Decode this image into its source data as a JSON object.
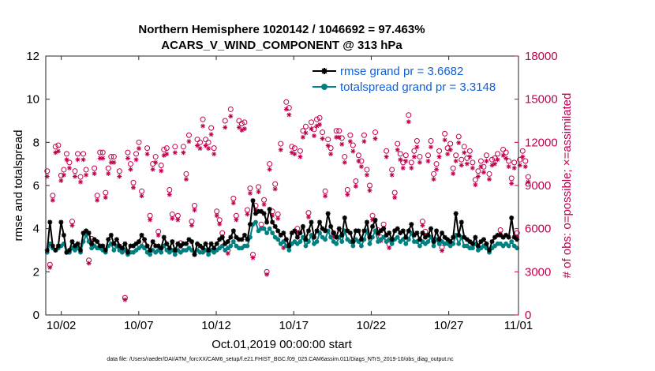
{
  "chart_data": {
    "type": "line",
    "title_line1": "Northern Hemisphere 1020142 / 1046692 = 97.463%",
    "title_line2": "ACARS_V_WIND_COMPONENT @ 313 hPa",
    "xlabel": "Oct.01,2019 00:00:00 start",
    "ylabel": "rmse and totalspread",
    "ylabel_right": "# of obs: o=possible; ×=assimilated",
    "footnote": "data file: /Users/raeder/DAI/ATM_forcXX/CAM6_setup/f.e21.FHIST_BGC.f09_025.CAM6assim.011/Diags_NTrS_2019-10/obs_diag_output.nc",
    "xlim": [
      0.5,
      31.0
    ],
    "ylim": [
      0,
      12
    ],
    "ylim_right": [
      0,
      18000
    ],
    "x_ticks": [
      1.5,
      6.5,
      11.5,
      16.5,
      21.5,
      26.5,
      31.0
    ],
    "x_tick_labels": [
      "10/02",
      "10/07",
      "10/12",
      "10/17",
      "10/22",
      "10/27",
      "11/01"
    ],
    "y_ticks": [
      0,
      2,
      4,
      6,
      8,
      10,
      12
    ],
    "y_tick_labels": [
      "0",
      "2",
      "4",
      "6",
      "8",
      "10",
      "12"
    ],
    "y_right_ticks": [
      0,
      3000,
      6000,
      9000,
      12000,
      15000,
      18000
    ],
    "y_right_tick_labels": [
      "0",
      "3000",
      "6000",
      "9000",
      "12000",
      "15000",
      "18000"
    ],
    "series": [
      {
        "name": "rmse",
        "legend": "rmse grand pr = 3.6682",
        "color": "#000000",
        "values": [
          3.0,
          4.3,
          3.2,
          3.0,
          3.2,
          4.3,
          3.7,
          2.9,
          3.0,
          3.4,
          3.2,
          3.3,
          3.0,
          3.8,
          3.9,
          3.8,
          3.3,
          3.5,
          3.4,
          3.2,
          3.2,
          3.0,
          3.5,
          3.7,
          3.3,
          3.5,
          3.2,
          3.1,
          3.3,
          2.9,
          3.2,
          3.2,
          3.3,
          3.4,
          3.7,
          3.5,
          3.2,
          3.0,
          3.4,
          3.2,
          3.2,
          3.1,
          3.6,
          3.3,
          3.1,
          3.4,
          3.0,
          3.3,
          3.2,
          3.3,
          3.3,
          3.5,
          3.4,
          2.8,
          3.3,
          3.2,
          3.1,
          3.3,
          3.0,
          3.3,
          3.1,
          3.3,
          3.5,
          3.6,
          3.3,
          3.4,
          3.6,
          3.9,
          3.6,
          3.5,
          3.5,
          3.7,
          3.5,
          4.2,
          5.3,
          4.7,
          4.8,
          4.8,
          4.7,
          4.3,
          4.9,
          4.3,
          4.1,
          3.9,
          3.7,
          3.8,
          3.5,
          3.2,
          3.8,
          3.9,
          3.6,
          3.8,
          4.1,
          3.5,
          3.9,
          4.3,
          3.6,
          3.9,
          4.3,
          4.0,
          3.9,
          4.7,
          4.1,
          3.8,
          3.6,
          4.0,
          3.7,
          4.5,
          3.9,
          3.8,
          3.4,
          3.9,
          3.9,
          3.5,
          3.9,
          4.3,
          3.6,
          4.1,
          4.4,
          3.8,
          3.9,
          4.0,
          3.7,
          3.8,
          3.5,
          3.9,
          4.0,
          3.8,
          3.9,
          3.6,
          3.9,
          4.2,
          3.7,
          3.8,
          3.5,
          3.8,
          3.6,
          3.7,
          4.0,
          3.4,
          3.9,
          3.5,
          3.8,
          3.6,
          3.5,
          3.4,
          3.6,
          4.7,
          3.7,
          4.3,
          3.6,
          3.5,
          3.4,
          3.3,
          3.6,
          3.2,
          3.4,
          3.5,
          3.3,
          3.0,
          3.4,
          3.6,
          3.7,
          3.7,
          3.6,
          3.7,
          3.6,
          4.5,
          3.6,
          3.5
        ]
      },
      {
        "name": "totalspread",
        "legend": "totalspread grand pr = 3.3148",
        "color": "#008080",
        "values": [
          2.9,
          3.3,
          3.1,
          3.0,
          3.1,
          3.2,
          3.3,
          2.9,
          2.9,
          3.1,
          3.0,
          3.1,
          2.9,
          3.4,
          3.7,
          3.4,
          3.1,
          3.2,
          3.1,
          3.1,
          3.0,
          2.9,
          3.2,
          3.3,
          3.0,
          3.2,
          3.0,
          2.9,
          3.0,
          2.8,
          2.9,
          2.9,
          3.0,
          3.1,
          3.2,
          3.1,
          2.9,
          2.8,
          3.0,
          2.9,
          3.0,
          2.9,
          3.2,
          3.0,
          2.9,
          3.0,
          2.8,
          3.0,
          2.9,
          3.0,
          3.0,
          3.1,
          3.0,
          2.8,
          3.0,
          2.9,
          2.9,
          3.0,
          2.8,
          3.0,
          2.9,
          3.0,
          3.1,
          3.2,
          3.0,
          3.1,
          3.2,
          3.4,
          3.2,
          3.1,
          3.1,
          3.2,
          3.2,
          3.6,
          4.2,
          4.3,
          3.9,
          4.0,
          4.0,
          3.8,
          4.0,
          3.8,
          3.6,
          3.5,
          3.3,
          3.4,
          3.2,
          3.0,
          3.3,
          3.4,
          3.3,
          3.4,
          3.6,
          3.2,
          3.4,
          3.7,
          3.3,
          3.4,
          3.8,
          3.6,
          3.5,
          3.9,
          3.6,
          3.4,
          3.3,
          3.6,
          3.4,
          3.9,
          3.5,
          3.4,
          3.2,
          3.5,
          3.4,
          3.2,
          3.5,
          3.9,
          3.3,
          3.6,
          3.9,
          3.4,
          3.5,
          3.6,
          3.4,
          3.5,
          3.3,
          3.5,
          3.6,
          3.4,
          3.5,
          3.3,
          3.5,
          3.8,
          3.4,
          3.4,
          3.2,
          3.4,
          3.3,
          3.4,
          3.6,
          3.2,
          3.5,
          3.3,
          3.4,
          3.3,
          3.3,
          3.2,
          3.3,
          3.7,
          3.3,
          3.6,
          3.2,
          3.2,
          3.1,
          3.1,
          3.3,
          3.0,
          3.1,
          3.2,
          3.1,
          2.9,
          3.1,
          3.2,
          3.3,
          3.3,
          3.2,
          3.3,
          3.2,
          3.4,
          3.2,
          3.1
        ]
      }
    ],
    "obs_possible": [
      10000,
      3500,
      8300,
      11700,
      11800,
      9700,
      10100,
      11200,
      10600,
      6500,
      10000,
      11200,
      9600,
      11200,
      10100,
      3800,
      5300,
      10200,
      8300,
      11300,
      11300,
      8500,
      10200,
      11000,
      11000,
      5000,
      10000,
      4600,
      1200,
      11300,
      10500,
      9200,
      11200,
      12000,
      8600,
      4900,
      11600,
      6900,
      10500,
      11000,
      5800,
      10400,
      11500,
      11600,
      8700,
      7000,
      11700,
      6900,
      5000,
      11700,
      9800,
      12500,
      6500,
      7600,
      12200,
      12000,
      13600,
      12200,
      12000,
      13000,
      11600,
      7200,
      6600,
      5700,
      13500,
      4500,
      14300,
      8100,
      6900,
      13500,
      13300,
      13400,
      7300,
      8800,
      4200,
      7600,
      8900,
      6300,
      8000,
      3000,
      10500,
      7200,
      9100,
      7000,
      11900,
      4900,
      14800,
      14400,
      11700,
      11600,
      6000,
      11400,
      12800,
      13100,
      7100,
      13400,
      12900,
      13600,
      13700,
      12700,
      8600,
      12200,
      11600,
      5700,
      12800,
      12800,
      12300,
      11000,
      8700,
      12500,
      11800,
      9300,
      11100,
      10700,
      12500,
      10100,
      9000,
      6900,
      12700,
      5900,
      5400,
      6300,
      11400,
      4900,
      10100,
      8500,
      11900,
      11200,
      10600,
      11100,
      13900,
      10600,
      11400,
      12100,
      11000,
      6500,
      5800,
      11100,
      12100,
      9800,
      10500,
      11400,
      4700,
      12600,
      11600,
      11900,
      10200,
      11100,
      12400,
      10800,
      11700,
      10900,
      11400,
      10600,
      9400,
      10000,
      10700,
      10300,
      11100,
      9800,
      10800,
      10900,
      11200,
      5900,
      11500,
      11300,
      10700,
      9500,
      10600,
      5700,
      10800,
      11400,
      10700,
      9600
    ]
  }
}
